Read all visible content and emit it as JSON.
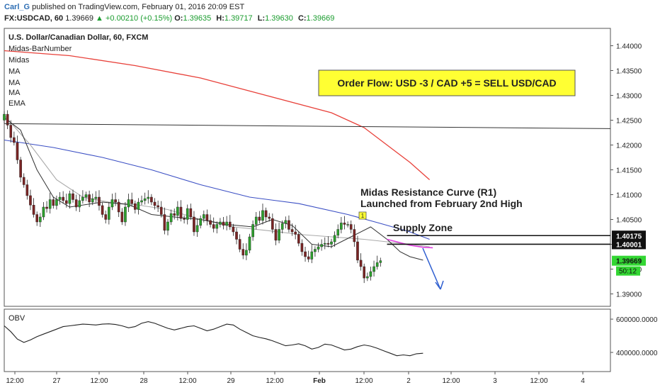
{
  "header": {
    "author": "Carl_G",
    "published": "published on TradingView.com, February 01, 2016 20:09 EST",
    "symbol": "FX:USDCAD, 60",
    "last": "1.39669",
    "change": "+0.00210 (+0.15%)",
    "ohlc": [
      {
        "k": "O:",
        "v": "1.39635"
      },
      {
        "k": "H:",
        "v": "1.39717"
      },
      {
        "k": "L:",
        "v": "1.39630"
      },
      {
        "k": "C:",
        "v": "1.39669"
      }
    ]
  },
  "legend": {
    "title": "U.S. Dollar/Canadian Dollar, 60, FXCM",
    "items": [
      "Midas-BarNumber",
      "Midas",
      "MA",
      "MA",
      "MA",
      "EMA"
    ]
  },
  "annotations": {
    "order_flow": "Order Flow: USD -3 / CAD +5 = SELL USD/CAD",
    "midas_line1": "Midas Resistance Curve (R1)",
    "midas_line2": "Launched from February 2nd High",
    "supply_zone": "Supply Zone",
    "marker": "1"
  },
  "colors": {
    "up_candle": "#2ca02c",
    "down_candle": "#7a2424",
    "ma_red": "#e8413a",
    "ma_blue": "#3b4fc4",
    "ma_grey": "#aaaaaa",
    "ema_black": "#333333",
    "midas_pink": "#e040e0",
    "note_bg": "#ffff33",
    "arrow": "#2f5fd0",
    "price_green": "#33d633"
  },
  "chart_data": [
    {
      "type": "candlestick",
      "ylim": [
        1.3875,
        1.4435
      ],
      "y_ticks": [
        "1.44000",
        "1.43500",
        "1.43000",
        "1.42500",
        "1.42000",
        "1.41500",
        "1.41000",
        "1.40500",
        "1.40000",
        "1.39500",
        "1.39000"
      ],
      "x_ticks": [
        "12:00",
        "27",
        "12:00",
        "28",
        "12:00",
        "29",
        "12:00",
        "Feb",
        "12:00",
        "2",
        "12:00",
        "3",
        "12:00",
        "4"
      ],
      "price_labels": [
        {
          "value": 1.40175,
          "text": "1.40175"
        },
        {
          "value": 1.40001,
          "text": "1.40001"
        },
        {
          "value": 1.39669,
          "text": "1.39669"
        }
      ],
      "countdown": "50:12",
      "horizontal_lines": [
        1.40175,
        1.40001
      ],
      "trendline": {
        "from": [
          0,
          1.4243
        ],
        "to": [
          117,
          1.4233
        ]
      },
      "candles_o": [
        1.425,
        1.4262,
        1.424,
        1.4215,
        1.4205,
        1.417,
        1.4135,
        1.412,
        1.4098,
        1.4079,
        1.406,
        1.4045,
        1.4055,
        1.4075,
        1.4072,
        1.409,
        1.4078,
        1.409,
        1.4095,
        1.4088,
        1.4082,
        1.4102,
        1.409,
        1.4075,
        1.4088,
        1.4095,
        1.41,
        1.4085,
        1.4092,
        1.4095,
        1.4078,
        1.406,
        1.405,
        1.4075,
        1.409,
        1.4085,
        1.4065,
        1.4045,
        1.4075,
        1.409,
        1.4082,
        1.407,
        1.4085,
        1.4088,
        1.4092,
        1.4095,
        1.4085,
        1.4078,
        1.4075,
        1.406,
        1.4028,
        1.4045,
        1.4062,
        1.4058,
        1.4075,
        1.4052,
        1.405,
        1.4072,
        1.4055,
        1.4025,
        1.4038,
        1.4052,
        1.406,
        1.4048,
        1.404,
        1.4032,
        1.404,
        1.4045,
        1.4038,
        1.4045,
        1.4035,
        1.4025,
        1.401,
        1.399,
        1.3978,
        1.3988,
        1.4015,
        1.404,
        1.4055,
        1.4048,
        1.4068,
        1.4055,
        1.4052,
        1.403,
        1.4008,
        1.403,
        1.4042,
        1.4048,
        1.403,
        1.4025,
        1.402,
        1.4002,
        1.3985,
        1.3975,
        1.397,
        1.3985,
        1.399,
        1.3995,
        1.4,
        1.4002,
        1.4,
        1.4005,
        1.4018,
        1.403,
        1.4043,
        1.404,
        1.404,
        1.403,
        1.4005,
        1.3968,
        1.3955,
        1.3932,
        1.3935,
        1.3945,
        1.3955,
        1.3963
      ],
      "candles_c": [
        1.4262,
        1.424,
        1.4215,
        1.4205,
        1.417,
        1.4135,
        1.412,
        1.4098,
        1.4079,
        1.406,
        1.4045,
        1.4055,
        1.4075,
        1.4072,
        1.409,
        1.4078,
        1.409,
        1.4095,
        1.4088,
        1.4082,
        1.4102,
        1.409,
        1.4075,
        1.4088,
        1.4095,
        1.41,
        1.4085,
        1.4092,
        1.4095,
        1.4078,
        1.406,
        1.405,
        1.4075,
        1.409,
        1.4085,
        1.4065,
        1.4045,
        1.4075,
        1.409,
        1.4082,
        1.407,
        1.4085,
        1.4088,
        1.4092,
        1.4095,
        1.4085,
        1.4078,
        1.4075,
        1.406,
        1.4028,
        1.4045,
        1.4062,
        1.4058,
        1.4075,
        1.4052,
        1.405,
        1.4072,
        1.4055,
        1.4025,
        1.4038,
        1.4052,
        1.406,
        1.4048,
        1.404,
        1.4032,
        1.404,
        1.4045,
        1.4038,
        1.4045,
        1.4035,
        1.4025,
        1.401,
        1.399,
        1.3978,
        1.3988,
        1.4015,
        1.404,
        1.4055,
        1.4048,
        1.4068,
        1.4055,
        1.4052,
        1.403,
        1.4008,
        1.403,
        1.4042,
        1.4048,
        1.403,
        1.4025,
        1.402,
        1.4002,
        1.3985,
        1.3975,
        1.397,
        1.3985,
        1.399,
        1.3995,
        1.4,
        1.4002,
        1.4,
        1.4005,
        1.4018,
        1.403,
        1.4043,
        1.404,
        1.404,
        1.403,
        1.4005,
        1.3968,
        1.3955,
        1.3932,
        1.3935,
        1.3945,
        1.3955,
        1.3963,
        1.3967
      ],
      "ma_red": [
        [
          0,
          1.439
        ],
        [
          20,
          1.438
        ],
        [
          40,
          1.436
        ],
        [
          60,
          1.4335
        ],
        [
          80,
          1.43
        ],
        [
          100,
          1.4265
        ],
        [
          110,
          1.4235
        ],
        [
          117,
          1.42
        ],
        [
          124,
          1.4165
        ],
        [
          130,
          1.413
        ]
      ],
      "ma_blue": [
        [
          0,
          1.421
        ],
        [
          15,
          1.4195
        ],
        [
          30,
          1.4175
        ],
        [
          45,
          1.415
        ],
        [
          60,
          1.412
        ],
        [
          75,
          1.4095
        ],
        [
          90,
          1.4082
        ],
        [
          105,
          1.406
        ],
        [
          115,
          1.4042
        ],
        [
          124,
          1.4025
        ],
        [
          130,
          1.401
        ]
      ],
      "ma_grey": [
        [
          0,
          1.426
        ],
        [
          8,
          1.42
        ],
        [
          16,
          1.413
        ],
        [
          24,
          1.4095
        ],
        [
          32,
          1.4085
        ],
        [
          40,
          1.408
        ],
        [
          50,
          1.407
        ],
        [
          60,
          1.405
        ],
        [
          70,
          1.4035
        ],
        [
          80,
          1.4028
        ],
        [
          90,
          1.402
        ],
        [
          100,
          1.4015
        ],
        [
          110,
          1.401
        ],
        [
          117,
          1.4005
        ],
        [
          124,
          1.4
        ],
        [
          130,
          1.3995
        ]
      ],
      "ema_black": [
        [
          0,
          1.4255
        ],
        [
          5,
          1.423
        ],
        [
          10,
          1.415
        ],
        [
          15,
          1.4095
        ],
        [
          20,
          1.4075
        ],
        [
          30,
          1.4085
        ],
        [
          38,
          1.408
        ],
        [
          45,
          1.406
        ],
        [
          52,
          1.4055
        ],
        [
          60,
          1.405
        ],
        [
          68,
          1.404
        ],
        [
          76,
          1.4035
        ],
        [
          82,
          1.405
        ],
        [
          88,
          1.4038
        ],
        [
          94,
          1.4
        ],
        [
          100,
          1.3995
        ],
        [
          106,
          1.4015
        ],
        [
          112,
          1.4035
        ],
        [
          117,
          1.401
        ],
        [
          121,
          1.3985
        ],
        [
          124,
          1.3975
        ],
        [
          128,
          1.3968
        ]
      ],
      "midas_pink": [
        [
          117,
          1.401
        ],
        [
          120,
          1.4005
        ],
        [
          124,
          1.3998
        ],
        [
          128,
          1.3994
        ],
        [
          131,
          1.3993
        ]
      ]
    },
    {
      "type": "line",
      "title": "OBV",
      "ylim": [
        285000,
        660000
      ],
      "y_ticks": [
        "600000.0000",
        "400000.0000"
      ],
      "obv": [
        [
          0,
          560000
        ],
        [
          2,
          525000
        ],
        [
          4,
          480000
        ],
        [
          6,
          460000
        ],
        [
          8,
          475000
        ],
        [
          10,
          495000
        ],
        [
          12,
          510000
        ],
        [
          14,
          525000
        ],
        [
          16,
          540000
        ],
        [
          18,
          555000
        ],
        [
          20,
          560000
        ],
        [
          22,
          565000
        ],
        [
          24,
          570000
        ],
        [
          26,
          568000
        ],
        [
          28,
          565000
        ],
        [
          30,
          570000
        ],
        [
          32,
          572000
        ],
        [
          34,
          568000
        ],
        [
          36,
          560000
        ],
        [
          38,
          548000
        ],
        [
          40,
          555000
        ],
        [
          42,
          575000
        ],
        [
          44,
          585000
        ],
        [
          46,
          575000
        ],
        [
          48,
          560000
        ],
        [
          50,
          545000
        ],
        [
          52,
          535000
        ],
        [
          54,
          545000
        ],
        [
          56,
          555000
        ],
        [
          58,
          560000
        ],
        [
          60,
          545000
        ],
        [
          62,
          530000
        ],
        [
          64,
          540000
        ],
        [
          66,
          555000
        ],
        [
          68,
          570000
        ],
        [
          70,
          565000
        ],
        [
          72,
          540000
        ],
        [
          74,
          520000
        ],
        [
          76,
          500000
        ],
        [
          78,
          490000
        ],
        [
          80,
          482000
        ],
        [
          82,
          470000
        ],
        [
          84,
          455000
        ],
        [
          86,
          440000
        ],
        [
          88,
          445000
        ],
        [
          90,
          452000
        ],
        [
          92,
          440000
        ],
        [
          94,
          420000
        ],
        [
          96,
          430000
        ],
        [
          98,
          450000
        ],
        [
          100,
          445000
        ],
        [
          102,
          430000
        ],
        [
          104,
          415000
        ],
        [
          106,
          420000
        ],
        [
          108,
          435000
        ],
        [
          110,
          445000
        ],
        [
          112,
          438000
        ],
        [
          114,
          425000
        ],
        [
          116,
          410000
        ],
        [
          118,
          395000
        ],
        [
          120,
          380000
        ],
        [
          122,
          385000
        ],
        [
          124,
          380000
        ],
        [
          126,
          392000
        ],
        [
          128,
          395000
        ]
      ]
    }
  ]
}
